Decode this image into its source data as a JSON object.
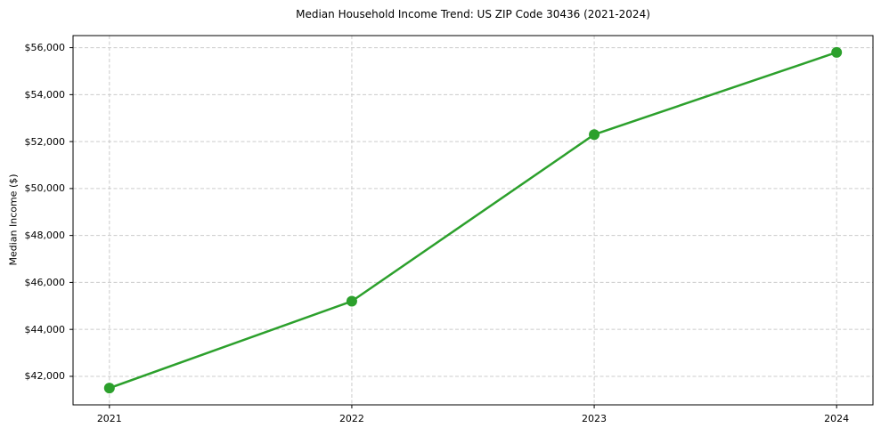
{
  "chart_data": {
    "type": "line",
    "title": "Median Household Income Trend: US ZIP Code 30436 (2021-2024)",
    "xlabel": "",
    "ylabel": "Median Income ($)",
    "x": [
      2021,
      2022,
      2023,
      2024
    ],
    "series": [
      {
        "name": "Median Household Income",
        "values": [
          41500,
          45200,
          52300,
          55800
        ]
      }
    ],
    "xticks": [
      2021,
      2022,
      2023,
      2024
    ],
    "xtick_labels": [
      "2021",
      "2022",
      "2023",
      "2024"
    ],
    "yticks": [
      42000,
      44000,
      46000,
      48000,
      50000,
      52000,
      54000,
      56000
    ],
    "ytick_labels": [
      "$42,000",
      "$44,000",
      "$46,000",
      "$48,000",
      "$50,000",
      "$52,000",
      "$54,000",
      "$56,000"
    ],
    "xlim": [
      2020.85,
      2024.15
    ],
    "ylim": [
      40785,
      56515
    ],
    "grid": true,
    "grid_style": "dashed",
    "legend_position": "none",
    "colors": {
      "line": "#2ca02c",
      "marker": "#2ca02c",
      "grid": "#cccccc",
      "spine": "#000000",
      "background": "#ffffff",
      "text": "#000000"
    }
  }
}
